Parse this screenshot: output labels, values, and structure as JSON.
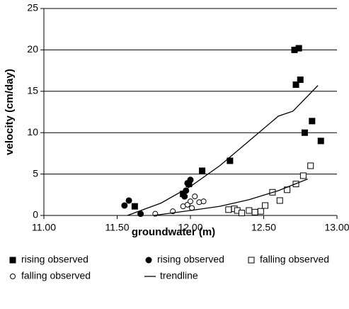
{
  "chart_data": {
    "type": "scatter",
    "xlabel": "groundwater (m)",
    "ylabel": "velocity (cm/day)",
    "xlim": [
      11,
      13
    ],
    "ylim": [
      0,
      25
    ],
    "xticks": [
      {
        "value": 11,
        "label": "11.00"
      },
      {
        "value": 11.5,
        "label": "11.50"
      },
      {
        "value": 12,
        "label": "12.00"
      },
      {
        "value": 12.5,
        "label": "12.50"
      },
      {
        "value": 13,
        "label": "13.00"
      }
    ],
    "yticks": [
      0,
      5,
      10,
      15,
      20,
      25
    ],
    "grid": true,
    "legend": "bottom",
    "series": [
      {
        "name": "rising observed",
        "color": "#000000",
        "marker": "filled-square",
        "x": [
          11.62,
          11.95,
          11.99,
          12.08,
          12.27,
          12.71,
          12.74,
          12.75,
          12.72,
          12.78,
          12.83,
          12.89
        ],
        "values": [
          1.1,
          2.6,
          3.8,
          5.4,
          6.6,
          20.0,
          20.2,
          16.4,
          15.8,
          10.0,
          11.4,
          9.0
        ]
      },
      {
        "name": "rising observed",
        "color": "#000000",
        "marker": "filled-circle",
        "x": [
          11.55,
          11.58,
          11.66,
          11.96,
          11.97,
          11.98,
          12.0
        ],
        "values": [
          1.2,
          1.8,
          0.2,
          2.3,
          3.0,
          3.9,
          4.3
        ]
      },
      {
        "name": "falling observed",
        "color": "#000000",
        "marker": "open-square",
        "x": [
          12.26,
          12.3,
          12.32,
          12.35,
          12.4,
          12.44,
          12.48,
          12.51,
          12.56,
          12.61,
          12.66,
          12.72,
          12.77,
          12.82
        ],
        "values": [
          0.7,
          0.8,
          0.6,
          0.3,
          0.6,
          0.4,
          0.5,
          1.2,
          2.8,
          1.8,
          3.1,
          3.8,
          4.8,
          6.0
        ]
      },
      {
        "name": "falling observed",
        "color": "#000000",
        "marker": "open-circle",
        "x": [
          11.76,
          11.88,
          11.95,
          11.98,
          12.0,
          12.01,
          12.03,
          12.06,
          12.09
        ],
        "values": [
          0.2,
          0.5,
          1.1,
          1.3,
          1.7,
          0.9,
          2.3,
          1.6,
          1.7
        ]
      },
      {
        "name": "trendline",
        "color": "#000000",
        "marker": "line",
        "x": [
          11.57,
          11.8,
          12.0,
          12.2,
          12.4,
          12.6,
          12.7,
          12.87,
          null,
          11.75,
          12.0,
          12.2,
          12.4,
          12.6,
          12.8
        ],
        "values": [
          0,
          1.5,
          3.5,
          6.0,
          9.0,
          12.0,
          12.6,
          15.7,
          null,
          0,
          0.6,
          1.1,
          1.9,
          3.0,
          4.4
        ]
      }
    ]
  }
}
